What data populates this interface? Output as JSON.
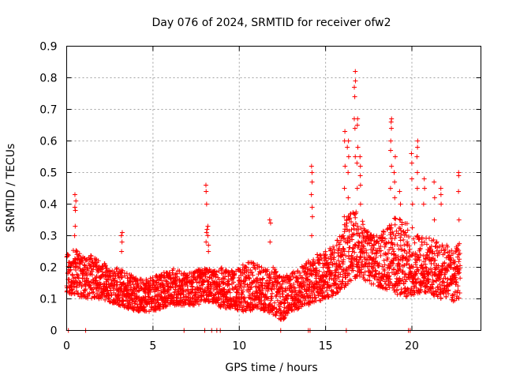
{
  "chart_data": {
    "type": "scatter",
    "title": "Day 076 of 2024, SRMTID for receiver ofw2",
    "xlabel": "GPS time / hours",
    "ylabel": "SRMTID / TECUs",
    "xlim": [
      0,
      24
    ],
    "ylim": [
      0,
      0.9
    ],
    "xticks": [
      0,
      5,
      10,
      15,
      20
    ],
    "xtick_labels": [
      "0",
      "5",
      "10",
      "15",
      "20"
    ],
    "yticks": [
      0,
      0.1,
      0.2,
      0.3,
      0.4,
      0.5,
      0.6,
      0.7,
      0.8,
      0.9
    ],
    "ytick_labels": [
      "0",
      "0.1",
      "0.2",
      "0.3",
      "0.4",
      "0.5",
      "0.6",
      "0.7",
      "0.8",
      "0.9"
    ],
    "grid": true,
    "marker": "+",
    "color": "#ff0000",
    "series": [
      {
        "name": "SRMTID",
        "sampled_envelope": {
          "x": [
            0.0,
            0.5,
            1.0,
            1.5,
            2.0,
            2.5,
            3.0,
            3.5,
            4.0,
            4.5,
            5.0,
            5.5,
            6.0,
            6.5,
            7.0,
            7.5,
            8.0,
            8.5,
            9.0,
            9.5,
            10.0,
            10.5,
            11.0,
            11.5,
            12.0,
            12.5,
            13.0,
            13.5,
            14.0,
            14.5,
            15.0,
            15.5,
            16.0,
            16.5,
            17.0,
            17.5,
            18.0,
            18.5,
            19.0,
            19.5,
            20.0,
            20.5,
            21.0,
            21.5,
            22.0,
            22.5,
            22.8
          ],
          "low": [
            0.12,
            0.11,
            0.1,
            0.1,
            0.1,
            0.09,
            0.08,
            0.07,
            0.06,
            0.06,
            0.06,
            0.07,
            0.08,
            0.08,
            0.08,
            0.08,
            0.09,
            0.09,
            0.07,
            0.07,
            0.06,
            0.06,
            0.07,
            0.06,
            0.05,
            0.03,
            0.06,
            0.07,
            0.08,
            0.09,
            0.1,
            0.11,
            0.13,
            0.16,
            0.17,
            0.15,
            0.14,
            0.13,
            0.12,
            0.1,
            0.11,
            0.12,
            0.12,
            0.1,
            0.1,
            0.09,
            0.1
          ],
          "high": [
            0.24,
            0.26,
            0.23,
            0.24,
            0.22,
            0.2,
            0.2,
            0.19,
            0.17,
            0.16,
            0.17,
            0.18,
            0.2,
            0.19,
            0.18,
            0.19,
            0.2,
            0.19,
            0.2,
            0.19,
            0.2,
            0.22,
            0.21,
            0.2,
            0.2,
            0.17,
            0.18,
            0.2,
            0.22,
            0.24,
            0.25,
            0.27,
            0.33,
            0.38,
            0.38,
            0.31,
            0.3,
            0.33,
            0.36,
            0.35,
            0.33,
            0.3,
            0.3,
            0.28,
            0.27,
            0.26,
            0.28
          ]
        },
        "spikes": [
          {
            "x": 0.5,
            "y": [
              0.3,
              0.33,
              0.38,
              0.39,
              0.41,
              0.43
            ]
          },
          {
            "x": 3.2,
            "y": [
              0.25,
              0.28,
              0.3,
              0.31
            ]
          },
          {
            "x": 8.1,
            "y": [
              0.28,
              0.31,
              0.32,
              0.4,
              0.44,
              0.46
            ]
          },
          {
            "x": 8.2,
            "y": [
              0.25,
              0.27,
              0.3,
              0.33
            ]
          },
          {
            "x": 11.8,
            "y": [
              0.28,
              0.34,
              0.35
            ]
          },
          {
            "x": 14.2,
            "y": [
              0.3,
              0.36,
              0.39,
              0.43,
              0.47,
              0.5,
              0.52
            ]
          },
          {
            "x": 16.1,
            "y": [
              0.36,
              0.45,
              0.52,
              0.6,
              0.63
            ]
          },
          {
            "x": 16.3,
            "y": [
              0.42,
              0.5,
              0.55,
              0.58,
              0.6
            ]
          },
          {
            "x": 16.7,
            "y": [
              0.55,
              0.64,
              0.67,
              0.74,
              0.77,
              0.79,
              0.82
            ]
          },
          {
            "x": 16.85,
            "y": [
              0.45,
              0.53,
              0.58,
              0.65,
              0.67
            ]
          },
          {
            "x": 17.0,
            "y": [
              0.4,
              0.46,
              0.49,
              0.52,
              0.55
            ]
          },
          {
            "x": 18.8,
            "y": [
              0.45,
              0.52,
              0.57,
              0.6,
              0.64,
              0.66,
              0.67
            ]
          },
          {
            "x": 19.0,
            "y": [
              0.42,
              0.47,
              0.5,
              0.55
            ]
          },
          {
            "x": 19.3,
            "y": [
              0.35,
              0.4,
              0.44
            ]
          },
          {
            "x": 20.0,
            "y": [
              0.4,
              0.48,
              0.53,
              0.56
            ]
          },
          {
            "x": 20.3,
            "y": [
              0.45,
              0.5,
              0.55,
              0.58,
              0.6
            ]
          },
          {
            "x": 20.7,
            "y": [
              0.4,
              0.45,
              0.48
            ]
          },
          {
            "x": 21.3,
            "y": [
              0.35,
              0.42,
              0.47
            ]
          },
          {
            "x": 21.7,
            "y": [
              0.4,
              0.43,
              0.45
            ]
          },
          {
            "x": 22.7,
            "y": [
              0.35,
              0.44,
              0.49,
              0.5
            ]
          }
        ],
        "baseline_zero_x": [
          0.1,
          1.1,
          6.8,
          8.0,
          8.4,
          8.7,
          8.9,
          12.4,
          14.0,
          14.1,
          16.2,
          19.8,
          19.9
        ]
      }
    ]
  }
}
